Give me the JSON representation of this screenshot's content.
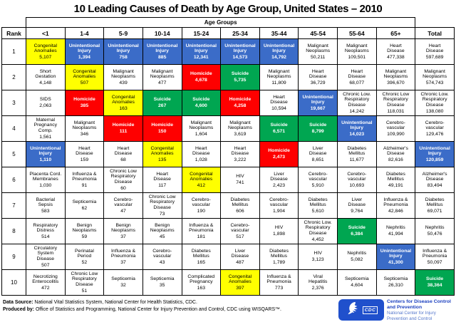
{
  "chart_data": {
    "type": "table",
    "title": "10 Leading Causes of Death by Age Group, United States – 2010",
    "age_groups_label": "Age Groups",
    "rank_label": "Rank",
    "columns": [
      "<1",
      "1-4",
      "5-9",
      "10-14",
      "15-24",
      "25-34",
      "35-44",
      "45-54",
      "55-64",
      "65+",
      "Total"
    ],
    "cell_format": [
      "cause",
      "value",
      "color_key"
    ],
    "colors": {
      "unintentional": "#3B6CC8",
      "congenital": "#FFFF00",
      "homicide": "#FE0000",
      "suicide": "#00A651",
      "none": "#FFFFFF",
      "border": "#000000"
    },
    "highlight_legend": {
      "unintentional": "Unintentional Injury",
      "congenital": "Congenital Anomalies",
      "homicide": "Homicide",
      "suicide": "Suicide"
    },
    "rows": [
      {
        "rank": "1",
        "cells": [
          [
            "Congenital\nAnomalies",
            "5,107",
            "congenital"
          ],
          [
            "Unintentional\nInjury",
            "1,394",
            "unintentional"
          ],
          [
            "Unintentional\nInjury",
            "758",
            "unintentional"
          ],
          [
            "Unintentional\nInjury",
            "885",
            "unintentional"
          ],
          [
            "Unintentional\nInjury",
            "12,341",
            "unintentional"
          ],
          [
            "Unintentional\nInjury",
            "14,573",
            "unintentional"
          ],
          [
            "Unintentional\nInjury",
            "14,792",
            "unintentional"
          ],
          [
            "Malignant\nNeoplasms",
            "50,211",
            "none"
          ],
          [
            "Malignant\nNeoplasms",
            "109,501",
            "none"
          ],
          [
            "Heart\nDisease",
            "477,338",
            "none"
          ],
          [
            "Heart\nDisease",
            "597,689",
            "none"
          ]
        ]
      },
      {
        "rank": "2",
        "cells": [
          [
            "Short\nGestation",
            "4,148",
            "none"
          ],
          [
            "Congenital\nAnomalies",
            "507",
            "congenital"
          ],
          [
            "Malignant\nNeoplasms",
            "439",
            "none"
          ],
          [
            "Malignant\nNeoplasms",
            "477",
            "none"
          ],
          [
            "Homicide",
            "4,678",
            "homicide"
          ],
          [
            "Suicide",
            "5,735",
            "suicide"
          ],
          [
            "Malignant\nNeoplasms",
            "11,809",
            "none"
          ],
          [
            "Heart\nDisease",
            "36,729",
            "none"
          ],
          [
            "Heart\nDisease",
            "68,077",
            "none"
          ],
          [
            "Malignant\nNeoplasms",
            "396,670",
            "none"
          ],
          [
            "Malignant\nNeoplasms",
            "574,743",
            "none"
          ]
        ]
      },
      {
        "rank": "3",
        "cells": [
          [
            "SIDS",
            "2,063",
            "none"
          ],
          [
            "Homicide",
            "385",
            "homicide"
          ],
          [
            "Congenital\nAnomalies",
            "163",
            "congenital"
          ],
          [
            "Suicide",
            "267",
            "suicide"
          ],
          [
            "Suicide",
            "4,600",
            "suicide"
          ],
          [
            "Homicide",
            "4,258",
            "homicide"
          ],
          [
            "Heart\nDisease",
            "10,594",
            "none"
          ],
          [
            "Unintentional\nInjury",
            "19,667",
            "unintentional"
          ],
          [
            "Chronic Low.\nRespiratory\nDisease",
            "14,242",
            "none"
          ],
          [
            "Chronic Low\nRespiratory\nDisease",
            "118,031",
            "none"
          ],
          [
            "Chronic Low.\nRespiratory\nDisease",
            "138,080",
            "none"
          ]
        ]
      },
      {
        "rank": "4",
        "cells": [
          [
            "Maternal\nPregnancy\nComp.",
            "1,561",
            "none"
          ],
          [
            "Malignant\nNeoplasms",
            "346",
            "none"
          ],
          [
            "Homicide",
            "111",
            "homicide"
          ],
          [
            "Homicide",
            "150",
            "homicide"
          ],
          [
            "Malignant\nNeoplasms",
            "1,604",
            "none"
          ],
          [
            "Malignant\nNeoplasms",
            "3,619",
            "none"
          ],
          [
            "Suicide",
            "6,571",
            "suicide"
          ],
          [
            "Suicide",
            "8,799",
            "suicide"
          ],
          [
            "Unintentional\nInjury",
            "14,023",
            "unintentional"
          ],
          [
            "Cerebro-\nvascular",
            "109,990",
            "none"
          ],
          [
            "Cerebro-\nvascular",
            "129,476",
            "none"
          ]
        ]
      },
      {
        "rank": "5",
        "cells": [
          [
            "Unintentional\nInjury",
            "1,110",
            "unintentional"
          ],
          [
            "Heart\nDisease",
            "159",
            "none"
          ],
          [
            "Heart\nDisease",
            "68",
            "none"
          ],
          [
            "Congenital\nAnomalies",
            "135",
            "congenital"
          ],
          [
            "Heart\nDisease",
            "1,028",
            "none"
          ],
          [
            "Heart\nDisease",
            "3,222",
            "none"
          ],
          [
            "Homicide",
            "2,473",
            "homicide"
          ],
          [
            "Liver\nDisease",
            "8,651",
            "none"
          ],
          [
            "Diabetes\nMellitus",
            "11,677",
            "none"
          ],
          [
            "Alzheimer's\nDisease",
            "82,616",
            "none"
          ],
          [
            "Unintentional\nInjury",
            "120,859",
            "unintentional"
          ]
        ]
      },
      {
        "rank": "6",
        "cells": [
          [
            "Placenta Cord.\nMembranes",
            "1,030",
            "none"
          ],
          [
            "Influenza &\nPneumonia",
            "91",
            "none"
          ],
          [
            "Chronic Low\nRespiratory\nDisease",
            "60",
            "none"
          ],
          [
            "Heart\nDisease",
            "117",
            "none"
          ],
          [
            "Congenital\nAnomalies",
            "412",
            "congenital"
          ],
          [
            "HIV",
            "741",
            "none"
          ],
          [
            "Liver\nDisease",
            "2,423",
            "none"
          ],
          [
            "Cerebro-\nvascular",
            "5,910",
            "none"
          ],
          [
            "Cerebro-\nvascular",
            "10,693",
            "none"
          ],
          [
            "Diabetes\nMellitus",
            "49,191",
            "none"
          ],
          [
            "Alzheimer's\nDisease",
            "83,494",
            "none"
          ]
        ]
      },
      {
        "rank": "7",
        "cells": [
          [
            "Bacterial\nSepsis",
            "583",
            "none"
          ],
          [
            "Septicemia",
            "62",
            "none"
          ],
          [
            "Cerebro-\nvascular",
            "47",
            "none"
          ],
          [
            "Chronic Low\nRespiratory\nDisease",
            "73",
            "none"
          ],
          [
            "Cerebro-\nvascular",
            "190",
            "none"
          ],
          [
            "Diabetes\nMellitus",
            "606",
            "none"
          ],
          [
            "Cerebro-\nvascular",
            "1,904",
            "none"
          ],
          [
            "Diabetes\nMellitus",
            "5,610",
            "none"
          ],
          [
            "Liver\nDisease",
            "9,764",
            "none"
          ],
          [
            "Influenza &\nPneumonia",
            "42,846",
            "none"
          ],
          [
            "Diabetes\nMellitus",
            "69,071",
            "none"
          ]
        ]
      },
      {
        "rank": "8",
        "cells": [
          [
            "Respiratory\nDistress",
            "514",
            "none"
          ],
          [
            "Benign\nNeoplasms",
            "59",
            "none"
          ],
          [
            "Benign\nNeoplasms",
            "37",
            "none"
          ],
          [
            "Benign\nNeoplasms",
            "45",
            "none"
          ],
          [
            "Influenza &\nPneumonia",
            "181",
            "none"
          ],
          [
            "Cerebro-\nvascular",
            "517",
            "none"
          ],
          [
            "HIV",
            "1,898",
            "none"
          ],
          [
            "Chronic Low.\nRespiratory\nDisease",
            "4,452",
            "none"
          ],
          [
            "Suicide",
            "6,384",
            "suicide"
          ],
          [
            "Nephritis",
            "41,994",
            "none"
          ],
          [
            "Nephritis",
            "50,476",
            "none"
          ]
        ]
      },
      {
        "rank": "9",
        "cells": [
          [
            "Circulatory\nSystem\nDisease",
            "507",
            "none"
          ],
          [
            "Perinatal\nPeriod",
            "52",
            "none"
          ],
          [
            "Influenza &\nPneumonia",
            "37",
            "none"
          ],
          [
            "Cerebro-\nvascular",
            "43",
            "none"
          ],
          [
            "Diabetes\nMellitus",
            "165",
            "none"
          ],
          [
            "Liver\nDisease",
            "487",
            "none"
          ],
          [
            "Diabetes\nMellitus",
            "1,789",
            "none"
          ],
          [
            "HIV",
            "3,123",
            "none"
          ],
          [
            "Nephritis",
            "5,082",
            "none"
          ],
          [
            "Unintentional\nInjury",
            "41,300",
            "unintentional"
          ],
          [
            "Influenza &\nPneumonia",
            "50,097",
            "none"
          ]
        ]
      },
      {
        "rank": "10",
        "cells": [
          [
            "Necrotizing\nEnterocolitis",
            "472",
            "none"
          ],
          [
            "Chronic Low\nRespiratory\nDisease",
            "51",
            "none"
          ],
          [
            "Septicemia",
            "32",
            "none"
          ],
          [
            "Septicemia",
            "35",
            "none"
          ],
          [
            "Complicated\nPregnancy",
            "163",
            "none"
          ],
          [
            "Congenital\nAnomalies",
            "397",
            "congenital"
          ],
          [
            "Influenza &\nPneumonia",
            "773",
            "none"
          ],
          [
            "Viral\nHepatitis",
            "2,376",
            "none"
          ],
          [
            "Septicemia",
            "4,604",
            "none"
          ],
          [
            "Septicemia",
            "26,310",
            "none"
          ],
          [
            "Suicide",
            "38,364",
            "suicide"
          ]
        ]
      }
    ]
  },
  "footer": {
    "source_label": "Data Source:",
    "source_text": " National Vital Statistics System, National Center for Health Statistics, CDC.",
    "produced_label": "Produced by:",
    "produced_text": " Office of Statistics and Programming, National Center for Injury Prevention and Control, CDC using WISQARS™.",
    "logo": {
      "cdc_label": "CDC",
      "org_name": "Centers for Disease Control and Prevention",
      "org_subname": "National Center for Injury Prevention and Control",
      "box_color": "#2050CC",
      "text_color": "#1A3FBF",
      "subtext_color": "#5577CC"
    }
  }
}
